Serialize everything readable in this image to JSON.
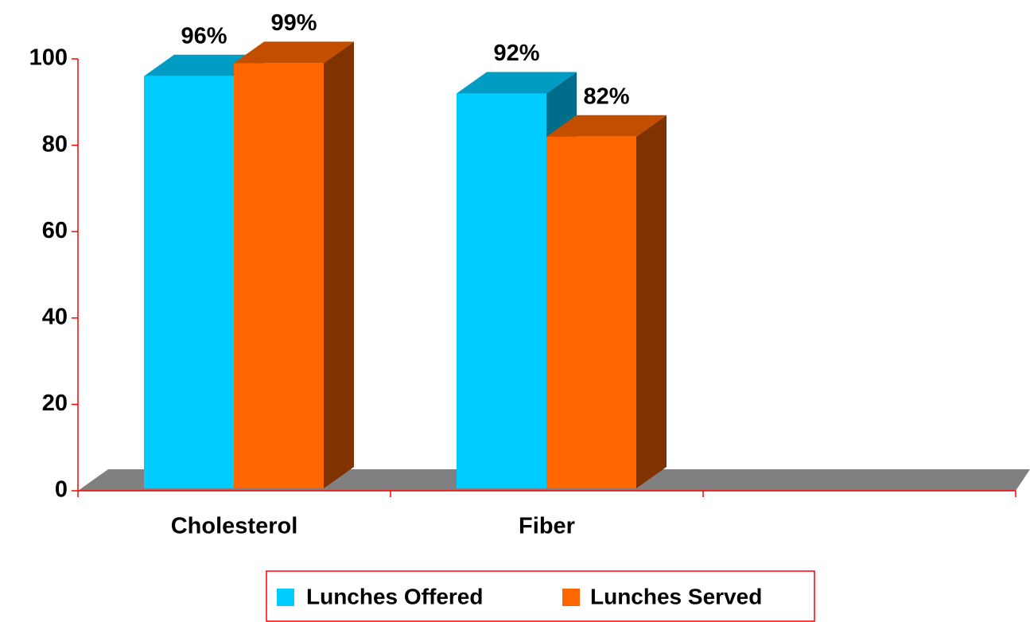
{
  "chart_data": {
    "type": "bar3d",
    "categories": [
      "Cholesterol",
      "Fiber",
      null
    ],
    "series": [
      {
        "name": "Lunches Offered",
        "color": "#00ccff",
        "side_color": "#006e8a",
        "top_color": "#009cc4",
        "values": [
          96,
          92,
          null
        ],
        "value_labels": [
          "96%",
          "92%",
          null
        ]
      },
      {
        "name": "Lunches Served",
        "color": "#ff6600",
        "side_color": "#803300",
        "top_color": "#c44e00",
        "values": [
          99,
          82,
          null
        ],
        "value_labels": [
          "99%",
          "82%",
          null
        ]
      }
    ],
    "ylim": [
      0,
      100
    ],
    "yticks": [
      0,
      20,
      40,
      60,
      80,
      100
    ],
    "grid": false,
    "legend": "bottom",
    "axis_color": "#ff0000",
    "floor_color": "#808080"
  }
}
